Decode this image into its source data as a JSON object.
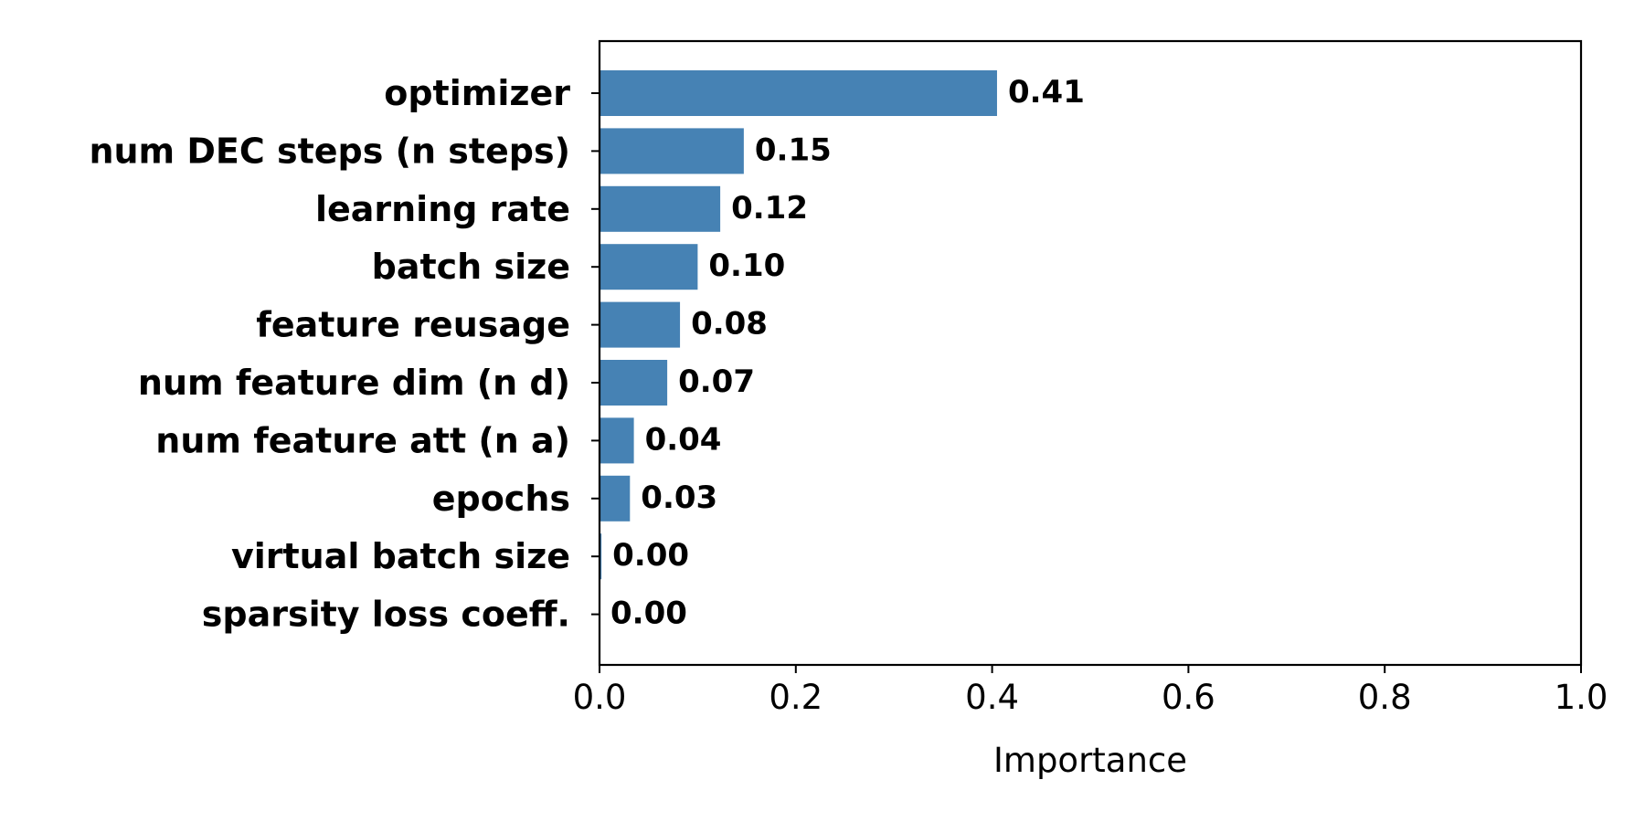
{
  "chart_data": {
    "type": "bar",
    "orientation": "horizontal",
    "categories": [
      "optimizer",
      "num DEC steps (n steps)",
      "learning rate",
      "batch size",
      "feature reusage",
      "num feature dim (n d)",
      "num feature att (n a)",
      "epochs",
      "virtual batch size",
      "sparsity loss coeff."
    ],
    "values": [
      0.405,
      0.147,
      0.123,
      0.1,
      0.082,
      0.069,
      0.035,
      0.031,
      0.002,
      0.0
    ],
    "value_labels": [
      "0.41",
      "0.15",
      "0.12",
      "0.10",
      "0.08",
      "0.07",
      "0.04",
      "0.03",
      "0.00",
      "0.00"
    ],
    "title": "",
    "xlabel": "Importance",
    "ylabel": "",
    "xlim": [
      0,
      1
    ],
    "xticks": [
      0.0,
      0.2,
      0.4,
      0.6,
      0.8,
      1.0
    ],
    "xtick_labels": [
      "0.0",
      "0.2",
      "0.4",
      "0.6",
      "0.8",
      "1.0"
    ],
    "grid": false,
    "bar_color": "#4682b4"
  }
}
